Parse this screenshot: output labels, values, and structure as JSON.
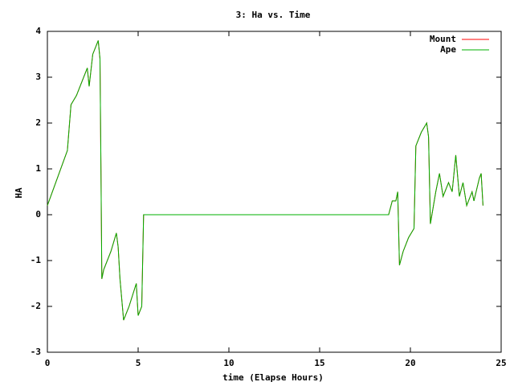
{
  "chart_data": {
    "type": "line",
    "title": "3: Ha vs. Time",
    "xlabel": "time (Elapse Hours)",
    "ylabel": "HA",
    "x": [
      0,
      1.1,
      1.3,
      1.6,
      2.2,
      2.3,
      2.5,
      2.8,
      2.9,
      2.95,
      3.0,
      3.1,
      3.5,
      3.8,
      3.9,
      4.0,
      4.2,
      4.5,
      4.9,
      5.0,
      5.2,
      5.3,
      18.8,
      19.0,
      19.2,
      19.3,
      19.4,
      19.6,
      19.9,
      20.2,
      20.3,
      20.6,
      20.9,
      21.0,
      21.1,
      21.4,
      21.6,
      21.8,
      22.1,
      22.3,
      22.5,
      22.7,
      22.9,
      23.1,
      23.4,
      23.5,
      23.8,
      23.9,
      24.0
    ],
    "series": [
      {
        "name": "Mount",
        "color": "#ff0000",
        "values": [
          0.2,
          1.4,
          2.4,
          2.6,
          3.2,
          2.8,
          3.5,
          3.8,
          3.4,
          1.0,
          -1.4,
          -1.2,
          -0.8,
          -0.4,
          -0.7,
          -1.4,
          -2.3,
          -2.0,
          -1.5,
          -2.2,
          -2.0,
          0,
          0,
          0.3,
          0.3,
          0.5,
          -1.1,
          -0.8,
          -0.5,
          -0.3,
          1.5,
          1.8,
          2.0,
          1.7,
          -0.2,
          0.5,
          0.9,
          0.4,
          0.7,
          0.5,
          1.3,
          0.4,
          0.7,
          0.2,
          0.5,
          0.3,
          0.8,
          0.9,
          0.2
        ]
      },
      {
        "name": "Ape",
        "color": "#00b000",
        "values": [
          0.2,
          1.4,
          2.4,
          2.6,
          3.2,
          2.8,
          3.5,
          3.8,
          3.4,
          1.0,
          -1.4,
          -1.2,
          -0.8,
          -0.4,
          -0.7,
          -1.4,
          -2.3,
          -2.0,
          -1.5,
          -2.2,
          -2.0,
          0,
          0,
          0.3,
          0.3,
          0.5,
          -1.1,
          -0.8,
          -0.5,
          -0.3,
          1.5,
          1.8,
          2.0,
          1.7,
          -0.2,
          0.5,
          0.9,
          0.4,
          0.7,
          0.5,
          1.3,
          0.4,
          0.7,
          0.2,
          0.5,
          0.3,
          0.8,
          0.9,
          0.2
        ]
      }
    ],
    "xlim": [
      0,
      25
    ],
    "xticks": [
      0,
      5,
      10,
      15,
      20,
      25
    ],
    "ylim": [
      -3,
      4
    ],
    "yticks": [
      -3,
      -2,
      -1,
      0,
      1,
      2,
      3,
      4
    ],
    "legend": "top-right"
  }
}
